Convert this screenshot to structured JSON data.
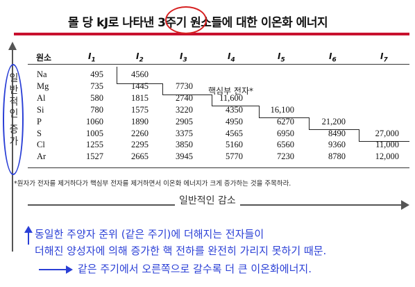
{
  "title": "몰 당 kJ로 나타낸 3주기 원소들에 대한 이온화 에너지",
  "vertical_label": [
    "일",
    "반",
    "적",
    "인",
    " ",
    "증",
    "가"
  ],
  "table": {
    "headers": [
      "원소",
      "I1",
      "I2",
      "I3",
      "I4",
      "I5",
      "I6",
      "I7"
    ],
    "rows": [
      {
        "el": "Na",
        "v": [
          "495",
          "4560",
          "",
          "",
          "",
          "",
          ""
        ]
      },
      {
        "el": "Mg",
        "v": [
          "735",
          "1445",
          "7730",
          "",
          "",
          "",
          ""
        ]
      },
      {
        "el": "Al",
        "v": [
          "580",
          "1815",
          "2740",
          "11,600",
          "",
          "",
          ""
        ]
      },
      {
        "el": "Si",
        "v": [
          "780",
          "1575",
          "3220",
          "4350",
          "16,100",
          "",
          ""
        ]
      },
      {
        "el": "P",
        "v": [
          "1060",
          "1890",
          "2905",
          "4950",
          "6270",
          "21,200",
          ""
        ]
      },
      {
        "el": "S",
        "v": [
          "1005",
          "2260",
          "3375",
          "4565",
          "6950",
          "8490",
          "27,000"
        ]
      },
      {
        "el": "Cl",
        "v": [
          "1255",
          "2295",
          "3850",
          "5160",
          "6560",
          "9360",
          "11,000"
        ]
      },
      {
        "el": "Ar",
        "v": [
          "1527",
          "2665",
          "3945",
          "5770",
          "7230",
          "8780",
          "12,000"
        ]
      }
    ],
    "core_label": "핵심부 전자*"
  },
  "footnote": "*원자가 전자를 제거하다가 핵심부 전자를 제거하면서 이온화 에너지가 크게 증가하는 것을 주목하라.",
  "horizontal_label": "일반적인 감소",
  "notes": {
    "line1": "동일한 주양자 준위 (같은 주기)에 더해지는 전자들이",
    "line2": "더해진 양성자에 의해 증가한 핵 전하를 완전히 가리지 못하기 때문.",
    "line3": "같은 주기에서 오른쪽으로 갈수록 더 큰 이온화에너지."
  }
}
